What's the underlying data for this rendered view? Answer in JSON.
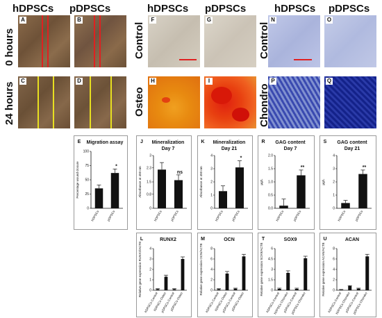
{
  "headers": {
    "left": {
      "h": "hDPSCs",
      "p": "pDPSCs"
    },
    "mid": {
      "h": "hDPSCs",
      "p": "pDPSCs"
    },
    "right": {
      "h": "hDPSCs",
      "p": "pDPSCs"
    }
  },
  "row_labels": {
    "zero": "0 hours",
    "twentyfour": "24 hours",
    "control1": "Control",
    "osteo": "Osteo",
    "control2": "Control",
    "chondro": "Chondro"
  },
  "panels": {
    "A": "A",
    "B": "B",
    "C": "C",
    "D": "D",
    "F": "F",
    "G": "G",
    "H": "H",
    "I": "I",
    "N": "N",
    "O": "O",
    "P": "P",
    "Q": "Q"
  },
  "colors": {
    "wound_red": "#e02020",
    "wound_yellow": "#e8e020",
    "scalebar": "#e02020",
    "osteo_red": "#e02010",
    "chondro_blue": "#1a2fa0"
  },
  "charts": {
    "E": {
      "label": "E",
      "title": "Migration assay",
      "ylabel": "Percentage wound closure",
      "categories": [
        "hDPSCs",
        "pDPSCs"
      ],
      "values": [
        35,
        62
      ],
      "errors": [
        6,
        7
      ],
      "sig": [
        "",
        "*"
      ],
      "ylim": [
        0,
        100
      ]
    },
    "J": {
      "label": "J",
      "title": "Mineralization",
      "subtitle": "Day 7",
      "ylabel": "Absorbance at 450 nm",
      "categories": [
        "hDPSCs",
        "pDPSCs"
      ],
      "values": [
        2.2,
        1.6
      ],
      "errors": [
        0.4,
        0.3
      ],
      "sig": [
        "",
        "ns"
      ],
      "ylim": [
        0,
        3
      ]
    },
    "K": {
      "label": "K",
      "title": "Mineralization",
      "subtitle": "Day 21",
      "ylabel": "Absorbance at 450 nm",
      "categories": [
        "hDPSCs",
        "pDPSCs"
      ],
      "values": [
        1.3,
        3.1
      ],
      "errors": [
        0.4,
        0.5
      ],
      "sig": [
        "",
        "*"
      ],
      "ylim": [
        0,
        4
      ]
    },
    "R": {
      "label": "R",
      "title": "GAG content",
      "subtitle": "Day 7",
      "ylabel": "µg/L",
      "categories": [
        "hDPSCs",
        "pDPSCs"
      ],
      "values": [
        0.1,
        1.25
      ],
      "errors": [
        0.25,
        0.2
      ],
      "sig": [
        "",
        "**"
      ],
      "ylim": [
        0,
        2.0
      ],
      "yticks": [
        "0.0",
        "0.5",
        "1.0",
        "1.5",
        "2.0"
      ]
    },
    "S": {
      "label": "S",
      "title": "GAG content",
      "subtitle": "Day 21",
      "ylabel": "µg/L",
      "categories": [
        "hDPSCs",
        "pDPSCs"
      ],
      "values": [
        0.4,
        2.6
      ],
      "errors": [
        0.2,
        0.3
      ],
      "sig": [
        "",
        "**"
      ],
      "ylim": [
        0,
        4
      ],
      "yticks": [
        "0",
        "1",
        "2",
        "3",
        "4"
      ]
    },
    "L": {
      "label": "L",
      "title": "RUNX2",
      "ylabel": "Relative gene expression RUNX2/ACTB",
      "categories": [
        "hDPSCs Control",
        "hDPSCs Osteo",
        "pDPSCs Control",
        "pDPSCs Osteo"
      ],
      "values": [
        0.1,
        1.3,
        0.1,
        3.0
      ],
      "errors": [
        0.05,
        0.15,
        0.05,
        0.2
      ],
      "ylim": [
        0,
        4
      ]
    },
    "M": {
      "label": "M",
      "title": "OCN",
      "ylabel": "Relative gene expression OCN/ACTB",
      "categories": [
        "hDPSCs Control",
        "hDPSCs Osteo",
        "pDPSCs Control",
        "pDPSCs Osteo"
      ],
      "values": [
        0.2,
        3.2,
        0.3,
        6.5
      ],
      "errors": [
        0.1,
        0.4,
        0.1,
        0.4
      ],
      "ylim": [
        0,
        8
      ]
    },
    "T": {
      "label": "T",
      "title": "SOX9",
      "ylabel": "Relative gene expression SOX9/ACTB",
      "categories": [
        "hDPSCs Control",
        "hDPSCs Chondro",
        "pDPSCs Control",
        "pDPSCs Chondro"
      ],
      "values": [
        0.2,
        2.5,
        0.2,
        4.6
      ],
      "errors": [
        0.1,
        0.3,
        0.1,
        0.3
      ],
      "ylim": [
        0,
        6
      ]
    },
    "U": {
      "label": "U",
      "title": "ACAN",
      "ylabel": "Relative gene expression ACAN/ACTB",
      "categories": [
        "hDPSCs Control",
        "hDPSCs Chondro",
        "pDPSCs Control",
        "pDPSCs Chondro"
      ],
      "values": [
        0.1,
        0.8,
        0.3,
        6.5
      ],
      "errors": [
        0.05,
        0.1,
        0.1,
        0.4
      ],
      "ylim": [
        0,
        8
      ]
    }
  }
}
